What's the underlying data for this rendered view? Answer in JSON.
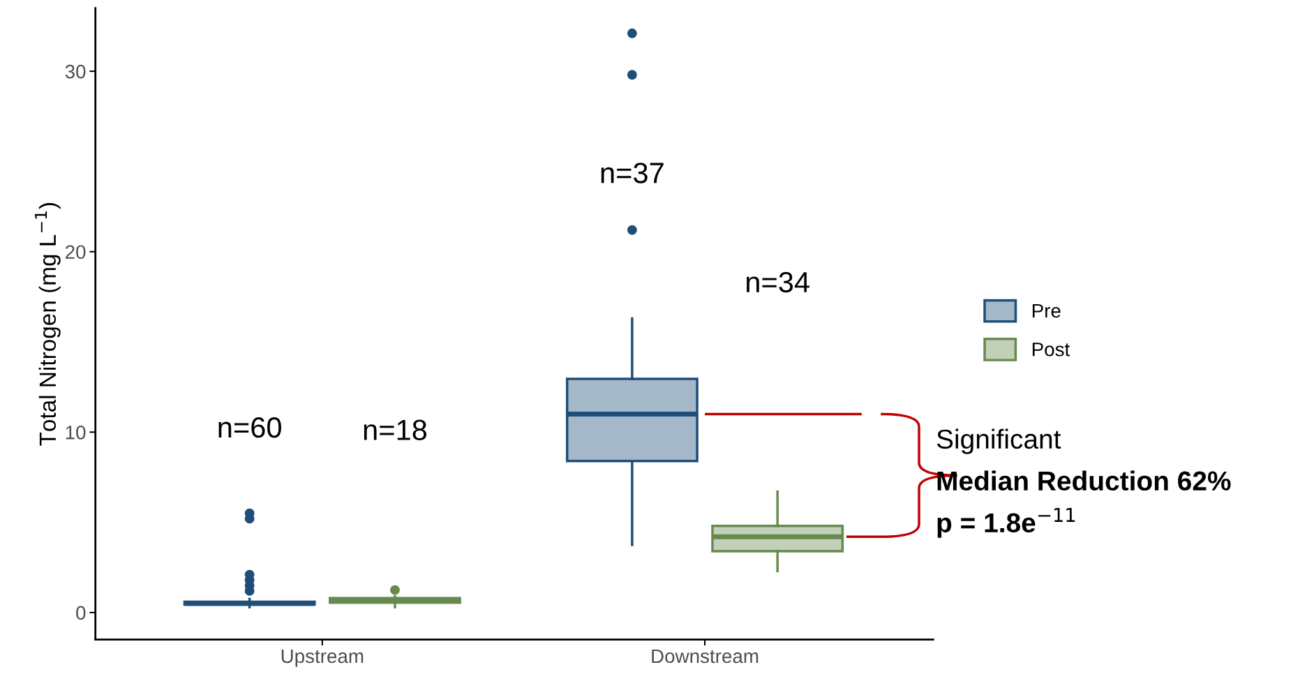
{
  "chart_data": {
    "type": "box",
    "ylabel": "Total Nitrogen (mg L$^{−1}$)",
    "categories": [
      "Upstream",
      "Downstream"
    ],
    "ylim": [
      -1.5,
      33.5
    ],
    "yticks": [
      0,
      10,
      20,
      30
    ],
    "grid": false,
    "legend": "right",
    "series": [
      {
        "name": "Pre",
        "color": "#1f4e79",
        "boxes": [
          {
            "low": 0.3,
            "q1": 0.45,
            "median": 0.5,
            "q3": 0.6,
            "high": 0.75,
            "outliers": [
              1.2,
              1.5,
              1.8,
              2.1,
              5.2,
              5.5
            ]
          },
          {
            "low": 3.75,
            "q1": 8.4,
            "median": 11.0,
            "q3": 12.95,
            "high": 16.3,
            "outliers": [
              21.2,
              29.8,
              32.1
            ]
          }
        ]
      },
      {
        "name": "Post",
        "color": "#668a4e",
        "boxes": [
          {
            "low": 0.3,
            "q1": 0.55,
            "median": 0.65,
            "q3": 0.8,
            "high": 0.9,
            "outliers": [
              1.25
            ]
          },
          {
            "low": 2.3,
            "q1": 3.4,
            "median": 4.2,
            "q3": 4.8,
            "high": 6.7
          }
        ]
      }
    ],
    "annotations": [
      "n=60",
      "n=18",
      "n=37",
      "n=34",
      "Significant",
      "Median Reduction 62%",
      "p = 1.8e$^{−11}$"
    ]
  }
}
